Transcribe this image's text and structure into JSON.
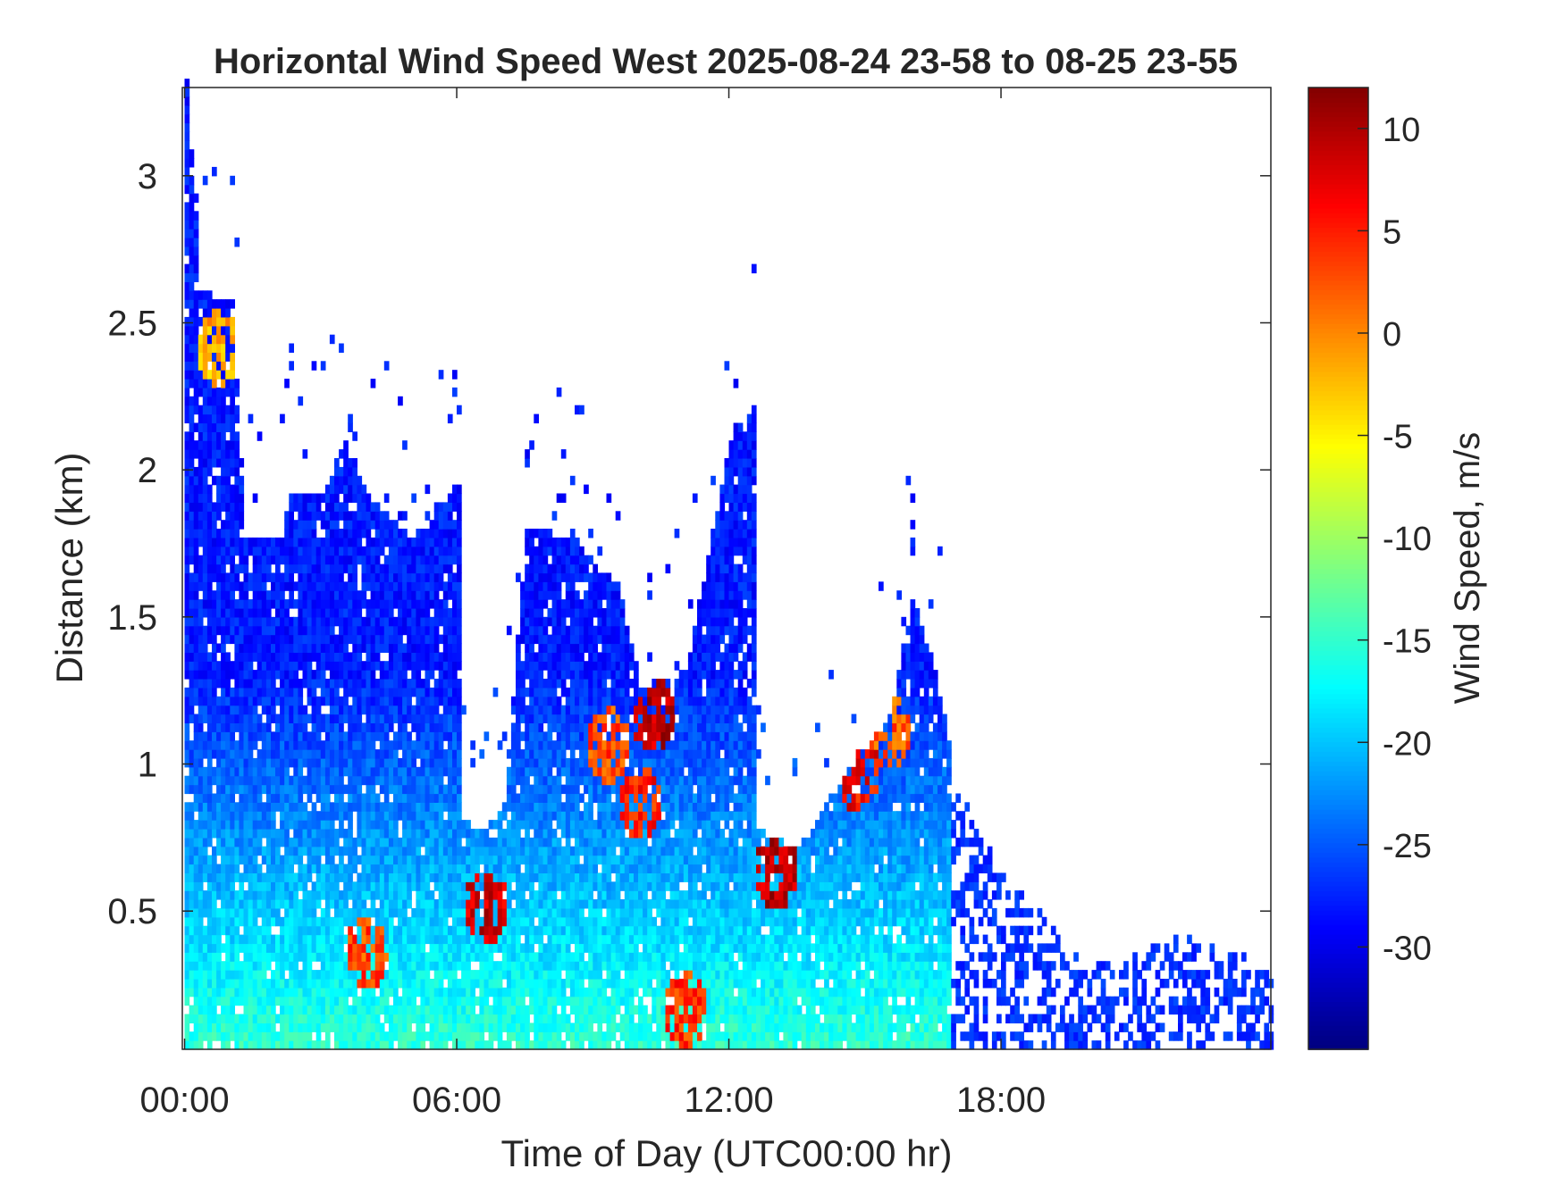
{
  "chart_data": {
    "type": "heatmap",
    "title": "Horizontal Wind Speed West 2025-08-24 23-58 to 08-25 23-55",
    "xlabel": "Time of Day (UTC00:00 hr)",
    "ylabel": "Distance (km)",
    "colorbar_label": "Wind Speed, m/s",
    "x_unit": "hours",
    "xlim": [
      -0.05,
      23.95
    ],
    "ylim": [
      0.03,
      3.3
    ],
    "x_ticks": [
      {
        "value": 0,
        "label": "00:00"
      },
      {
        "value": 6,
        "label": "06:00"
      },
      {
        "value": 12,
        "label": "12:00"
      },
      {
        "value": 18,
        "label": "18:00"
      }
    ],
    "y_ticks": [
      {
        "value": 0.5,
        "label": "0.5"
      },
      {
        "value": 1,
        "label": "1"
      },
      {
        "value": 1.5,
        "label": "1.5"
      },
      {
        "value": 2,
        "label": "2"
      },
      {
        "value": 2.5,
        "label": "2.5"
      },
      {
        "value": 3,
        "label": "3"
      }
    ],
    "colorbar": {
      "min": -35,
      "max": 12,
      "ticks": [
        {
          "value": 10,
          "label": "10"
        },
        {
          "value": 5,
          "label": "5"
        },
        {
          "value": 0,
          "label": "0"
        },
        {
          "value": -5,
          "label": "-5"
        },
        {
          "value": -10,
          "label": "-10"
        },
        {
          "value": -15,
          "label": "-15"
        },
        {
          "value": -20,
          "label": "-20"
        },
        {
          "value": -25,
          "label": "-25"
        },
        {
          "value": -30,
          "label": "-30"
        }
      ],
      "colormap": "jet"
    },
    "coverage_top_km": [
      {
        "x": 0.0,
        "y": 3.3
      },
      {
        "x": 0.3,
        "y": 2.6
      },
      {
        "x": 1.0,
        "y": 2.55
      },
      {
        "x": 1.3,
        "y": 1.75
      },
      {
        "x": 2.0,
        "y": 1.75
      },
      {
        "x": 2.3,
        "y": 1.9
      },
      {
        "x": 3.0,
        "y": 1.9
      },
      {
        "x": 3.5,
        "y": 2.1
      },
      {
        "x": 4.0,
        "y": 1.9
      },
      {
        "x": 5.0,
        "y": 1.75
      },
      {
        "x": 6.0,
        "y": 1.95
      },
      {
        "x": 6.1,
        "y": 0.8
      },
      {
        "x": 6.5,
        "y": 0.75
      },
      {
        "x": 7.0,
        "y": 0.85
      },
      {
        "x": 7.5,
        "y": 1.8
      },
      {
        "x": 8.5,
        "y": 1.75
      },
      {
        "x": 9.5,
        "y": 1.6
      },
      {
        "x": 10.0,
        "y": 1.25
      },
      {
        "x": 11.0,
        "y": 1.3
      },
      {
        "x": 12.0,
        "y": 2.1
      },
      {
        "x": 12.5,
        "y": 2.2
      },
      {
        "x": 12.6,
        "y": 0.75
      },
      {
        "x": 13.5,
        "y": 0.7
      },
      {
        "x": 14.5,
        "y": 0.95
      },
      {
        "x": 15.5,
        "y": 1.15
      },
      {
        "x": 16.0,
        "y": 1.55
      },
      {
        "x": 16.5,
        "y": 1.3
      },
      {
        "x": 17.0,
        "y": 0.9
      },
      {
        "x": 18.0,
        "y": 0.6
      },
      {
        "x": 20.0,
        "y": 0.3
      },
      {
        "x": 22.0,
        "y": 0.4
      },
      {
        "x": 23.95,
        "y": 0.3
      }
    ],
    "hot_spots": [
      {
        "x": 6.6,
        "y": 0.5,
        "v": 8
      },
      {
        "x": 10.3,
        "y": 1.15,
        "v": 9
      },
      {
        "x": 13.0,
        "y": 0.62,
        "v": 9
      },
      {
        "x": 14.8,
        "y": 0.95,
        "v": 6
      },
      {
        "x": 0.7,
        "y": 2.4,
        "v": -2
      },
      {
        "x": 4.0,
        "y": 0.35,
        "v": 3
      },
      {
        "x": 11.0,
        "y": 0.15,
        "v": 4
      },
      {
        "x": 15.5,
        "y": 1.1,
        "v": 2
      },
      {
        "x": 10.0,
        "y": 0.85,
        "v": 5
      },
      {
        "x": 9.3,
        "y": 1.05,
        "v": 3
      }
    ]
  }
}
